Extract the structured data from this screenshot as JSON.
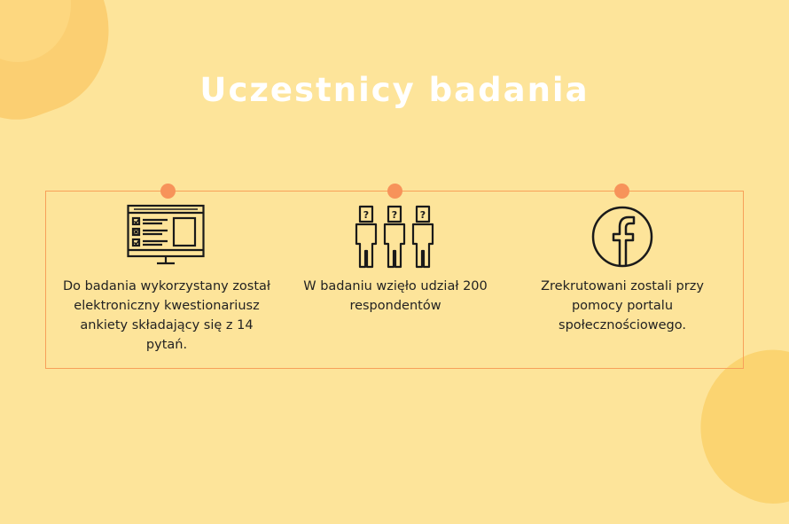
{
  "page": {
    "title": "Uczestnicy badania"
  },
  "items": [
    {
      "icon": "questionnaire-monitor-icon",
      "text": "Do badania wykorzystany został elektroniczny kwestionariusz ankiety składający się z 14 pytań."
    },
    {
      "icon": "respondents-group-icon",
      "text": "W badaniu wzięło udział 200 respondentów"
    },
    {
      "icon": "facebook-icon",
      "text": "Zrekrutowani zostali przy pomocy portalu społecznościowego."
    }
  ],
  "colors": {
    "background": "#fde49a",
    "accent": "#f7935a",
    "frame": "#f7a059",
    "title": "#ffffff",
    "text": "#222222"
  }
}
